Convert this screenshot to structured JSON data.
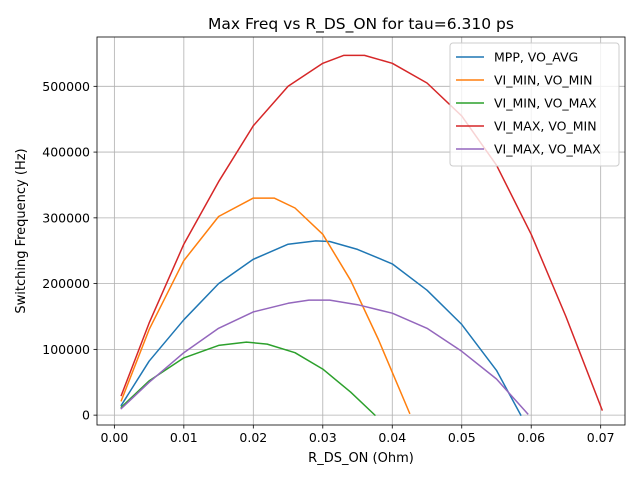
{
  "chart_data": {
    "type": "line",
    "title": "Max Freq vs R_DS_ON for tau=6.310 ps",
    "xlabel": "R_DS_ON (Ohm)",
    "ylabel": "Switching Frequency (Hz)",
    "xlim": [
      -0.0025,
      0.0735
    ],
    "ylim": [
      -15000,
      575000
    ],
    "grid": true,
    "legend": "top-right",
    "x_ticks": [
      {
        "value": 0.0,
        "label": "0.00"
      },
      {
        "value": 0.01,
        "label": "0.01"
      },
      {
        "value": 0.02,
        "label": "0.02"
      },
      {
        "value": 0.03,
        "label": "0.03"
      },
      {
        "value": 0.04,
        "label": "0.04"
      },
      {
        "value": 0.05,
        "label": "0.05"
      },
      {
        "value": 0.06,
        "label": "0.06"
      },
      {
        "value": 0.07,
        "label": "0.07"
      }
    ],
    "y_ticks": [
      {
        "value": 0,
        "label": "0"
      },
      {
        "value": 100000,
        "label": "100000"
      },
      {
        "value": 200000,
        "label": "200000"
      },
      {
        "value": 300000,
        "label": "300000"
      },
      {
        "value": 400000,
        "label": "400000"
      },
      {
        "value": 500000,
        "label": "500000"
      }
    ],
    "series": [
      {
        "name": "MPP, VO_AVG",
        "color": "#1f77b4",
        "points": [
          [
            0.001,
            15000
          ],
          [
            0.005,
            82000
          ],
          [
            0.01,
            145000
          ],
          [
            0.015,
            200000
          ],
          [
            0.02,
            237000
          ],
          [
            0.025,
            260000
          ],
          [
            0.029,
            265000
          ],
          [
            0.031,
            264000
          ],
          [
            0.035,
            252000
          ],
          [
            0.04,
            230000
          ],
          [
            0.045,
            190000
          ],
          [
            0.05,
            138000
          ],
          [
            0.055,
            68000
          ],
          [
            0.0585,
            0
          ]
        ]
      },
      {
        "name": "VI_MIN, VO_MIN",
        "color": "#ff7f0e",
        "points": [
          [
            0.001,
            22000
          ],
          [
            0.005,
            130000
          ],
          [
            0.01,
            235000
          ],
          [
            0.015,
            302000
          ],
          [
            0.02,
            330000
          ],
          [
            0.023,
            330000
          ],
          [
            0.026,
            315000
          ],
          [
            0.03,
            275000
          ],
          [
            0.034,
            205000
          ],
          [
            0.038,
            115000
          ],
          [
            0.0425,
            3000
          ]
        ]
      },
      {
        "name": "VI_MIN, VO_MAX",
        "color": "#2ca02c",
        "points": [
          [
            0.001,
            12000
          ],
          [
            0.005,
            52000
          ],
          [
            0.01,
            87000
          ],
          [
            0.015,
            106000
          ],
          [
            0.019,
            111000
          ],
          [
            0.022,
            108000
          ],
          [
            0.026,
            95000
          ],
          [
            0.03,
            70000
          ],
          [
            0.034,
            35000
          ],
          [
            0.0375,
            0
          ]
        ]
      },
      {
        "name": "VI_MAX, VO_MIN",
        "color": "#d62728",
        "points": [
          [
            0.001,
            30000
          ],
          [
            0.005,
            140000
          ],
          [
            0.01,
            260000
          ],
          [
            0.015,
            355000
          ],
          [
            0.02,
            440000
          ],
          [
            0.025,
            500000
          ],
          [
            0.03,
            535000
          ],
          [
            0.033,
            547000
          ],
          [
            0.036,
            547000
          ],
          [
            0.04,
            535000
          ],
          [
            0.045,
            505000
          ],
          [
            0.05,
            455000
          ],
          [
            0.055,
            380000
          ],
          [
            0.06,
            275000
          ],
          [
            0.065,
            150000
          ],
          [
            0.0702,
            8000
          ]
        ]
      },
      {
        "name": "VI_MAX, VO_MAX",
        "color": "#9467bd",
        "points": [
          [
            0.001,
            10000
          ],
          [
            0.005,
            50000
          ],
          [
            0.01,
            95000
          ],
          [
            0.015,
            132000
          ],
          [
            0.02,
            157000
          ],
          [
            0.025,
            170000
          ],
          [
            0.028,
            175000
          ],
          [
            0.031,
            175000
          ],
          [
            0.035,
            168000
          ],
          [
            0.04,
            155000
          ],
          [
            0.045,
            132000
          ],
          [
            0.05,
            97000
          ],
          [
            0.055,
            55000
          ],
          [
            0.0595,
            2000
          ]
        ]
      }
    ]
  }
}
